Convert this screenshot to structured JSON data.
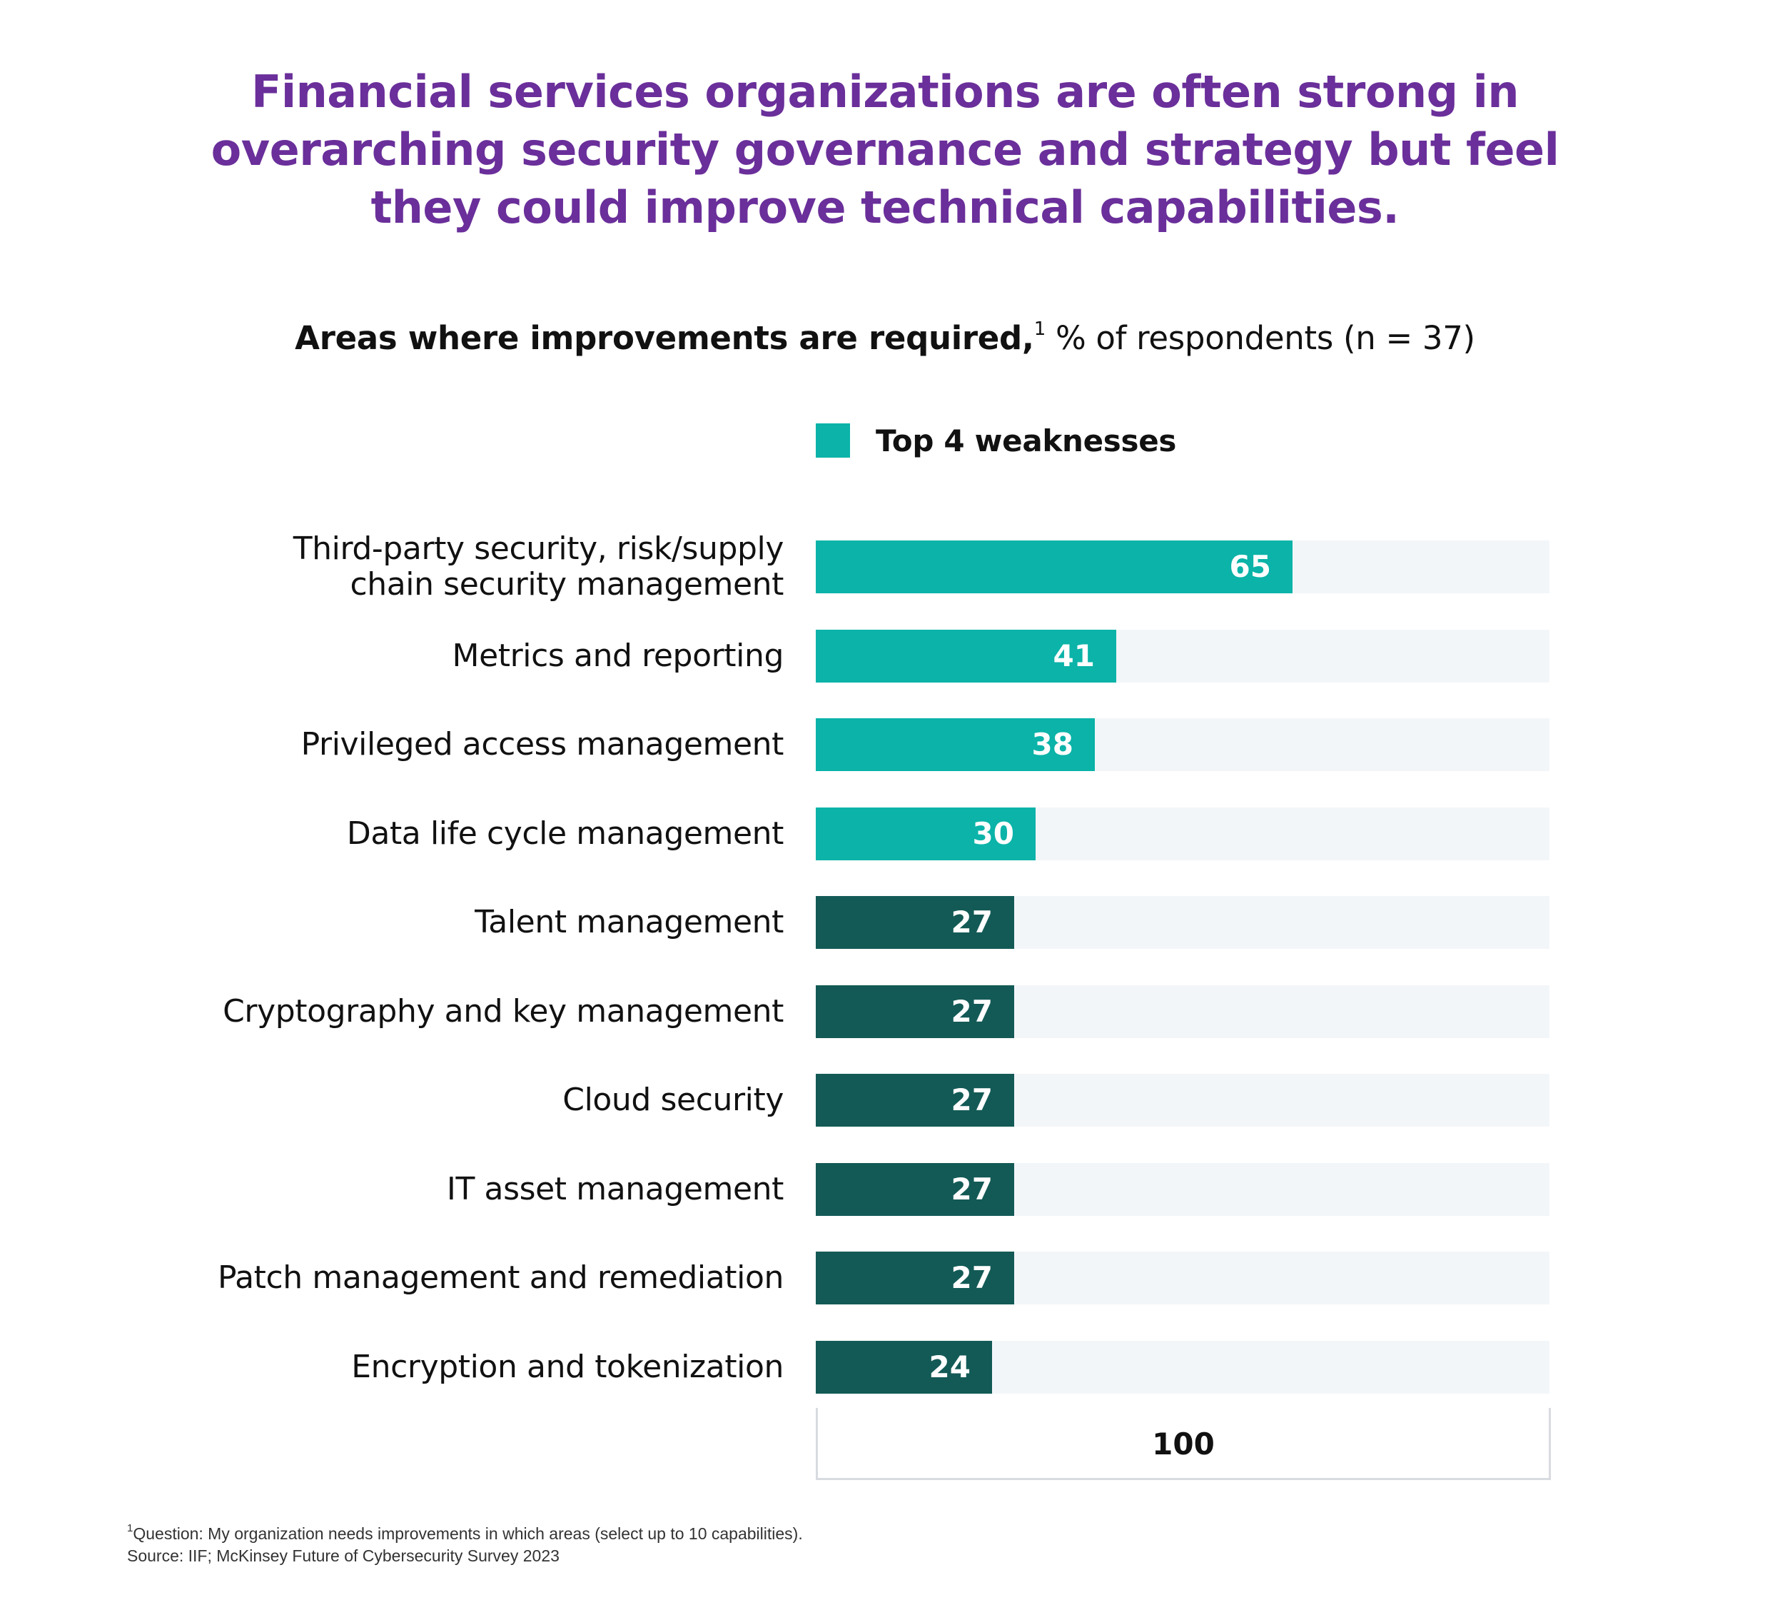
{
  "title": "Financial services organizations are often strong in overarching security governance and strategy but feel they could improve technical capabilities.",
  "subtitle": {
    "bold": "Areas where improvements are required,",
    "superscript": "1",
    "regular": " % of respondents (n = 37)"
  },
  "legend": {
    "label": "Top 4 weaknesses",
    "color": "#0bb3a8"
  },
  "colors": {
    "highlight": "#0bb3a8",
    "other": "#135a56",
    "track": "#f3f6f9",
    "title": "#6a2f9a"
  },
  "chart_data": {
    "type": "bar",
    "orientation": "horizontal",
    "title": "Areas where improvements are required, % of respondents (n = 37)",
    "categories": [
      "Third-party security, risk/supply chain security management",
      "Metrics and reporting",
      "Privileged access management",
      "Data life cycle management",
      "Talent management",
      "Cryptography and key management",
      "Cloud security",
      "IT asset management",
      "Patch management and remediation",
      "Encryption and tokenization"
    ],
    "label_lines": [
      [
        "Third-party security, risk/supply",
        "chain security management"
      ],
      [
        "Metrics and reporting"
      ],
      [
        "Privileged access management"
      ],
      [
        "Data life cycle management"
      ],
      [
        "Talent management"
      ],
      [
        "Cryptography and key management"
      ],
      [
        "Cloud security"
      ],
      [
        "IT asset management"
      ],
      [
        "Patch management and remediation"
      ],
      [
        "Encryption and tokenization"
      ]
    ],
    "values": [
      65,
      41,
      38,
      30,
      27,
      27,
      27,
      27,
      27,
      24
    ],
    "highlighted": [
      true,
      true,
      true,
      true,
      false,
      false,
      false,
      false,
      false,
      false
    ],
    "xlim": [
      0,
      100
    ],
    "scale_label": "100",
    "xlabel": "",
    "ylabel": ""
  },
  "footnotes": {
    "superscript": "1",
    "question": "Question: My organization needs improvements in which areas (select up to 10 capabilities).",
    "source": "Source: IIF; McKinsey Future of Cybersecurity Survey 2023"
  }
}
